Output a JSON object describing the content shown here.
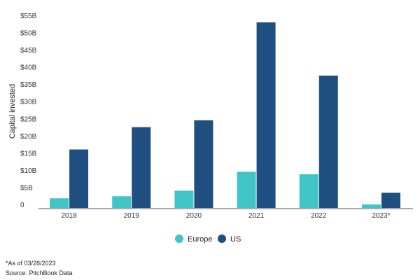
{
  "chart_data": {
    "type": "bar",
    "title": "",
    "xlabel": "",
    "ylabel": "Capital invested",
    "categories": [
      "2018",
      "2019",
      "2020",
      "2021",
      "2022",
      "2023*"
    ],
    "series": [
      {
        "name": "Europe",
        "color": "#40c4c6",
        "values": [
          2.8,
          3.4,
          5.0,
          10.5,
          9.8,
          1.0
        ]
      },
      {
        "name": "US",
        "color": "#1f4e80",
        "values": [
          17.0,
          23.5,
          25.5,
          54.0,
          38.5,
          4.4
        ]
      }
    ],
    "ylim": [
      0,
      55
    ],
    "yticks": [
      0,
      5,
      10,
      15,
      20,
      25,
      30,
      35,
      40,
      45,
      50,
      55
    ],
    "ytick_labels": [
      "0",
      "$5B",
      "$10B",
      "$15B",
      "$20B",
      "$25B",
      "$30B",
      "$35B",
      "$40B",
      "$45B",
      "$50B",
      "$55B"
    ],
    "grid": false,
    "legend": "bottom-center"
  },
  "footnotes": {
    "as_of": "*As of 03/28/2023",
    "source": "Source: PitchBook Data"
  }
}
